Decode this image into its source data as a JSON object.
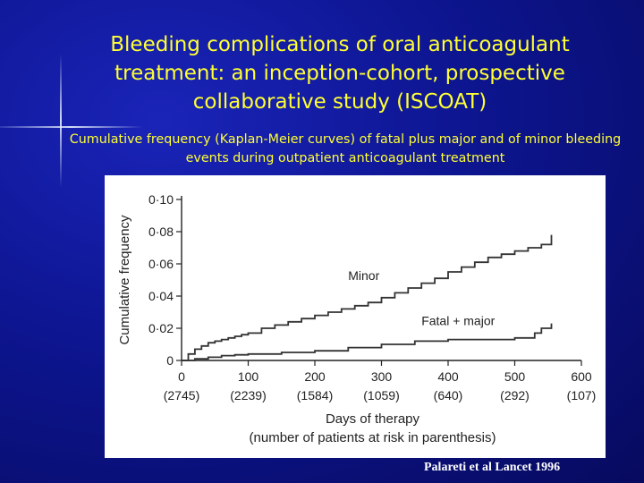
{
  "slide": {
    "title": "Bleeding complications of oral anticoagulant treatment: an inception-cohort, prospective collaborative study (ISCOAT)",
    "subtitle": "Cumulative frequency (Kaplan-Meier curves) of fatal plus major and of minor bleeding events during outpatient anticoagulant treatment",
    "citation": "Palareti et al Lancet  1996",
    "title_color": "#ffff33",
    "background_color": "#0d1590"
  },
  "chart_data": {
    "type": "line",
    "title": "",
    "xlabel": "Days of therapy",
    "xlabel_sub": "(number of patients at risk in parenthesis)",
    "ylabel": "Cumulative frequency",
    "xlim": [
      0,
      600
    ],
    "ylim": [
      0,
      0.1
    ],
    "x_ticks": [
      0,
      100,
      200,
      300,
      400,
      500,
      600
    ],
    "y_ticks": [
      0,
      0.02,
      0.04,
      0.06,
      0.08,
      0.1
    ],
    "y_tick_labels": [
      "0",
      "0·02",
      "0·04",
      "0·06",
      "0·08",
      "0·10"
    ],
    "at_risk": [
      "(2745)",
      "(2239)",
      "(1584)",
      "(1059)",
      "(640)",
      "(292)",
      "(107)"
    ],
    "grid": false,
    "series": [
      {
        "name": "Minor",
        "x": [
          0,
          10,
          20,
          30,
          40,
          50,
          60,
          70,
          80,
          90,
          100,
          120,
          140,
          160,
          180,
          200,
          220,
          240,
          260,
          280,
          300,
          320,
          340,
          360,
          380,
          400,
          420,
          440,
          460,
          480,
          500,
          520,
          540,
          555
        ],
        "y": [
          0,
          0.004,
          0.007,
          0.009,
          0.011,
          0.012,
          0.013,
          0.014,
          0.015,
          0.016,
          0.017,
          0.02,
          0.022,
          0.024,
          0.026,
          0.028,
          0.03,
          0.032,
          0.034,
          0.036,
          0.039,
          0.042,
          0.045,
          0.048,
          0.051,
          0.055,
          0.058,
          0.061,
          0.064,
          0.066,
          0.068,
          0.07,
          0.072,
          0.078
        ]
      },
      {
        "name": "Fatal + major",
        "x": [
          0,
          20,
          40,
          60,
          80,
          100,
          150,
          200,
          250,
          300,
          350,
          400,
          450,
          500,
          520,
          530,
          540,
          555
        ],
        "y": [
          0,
          0.001,
          0.002,
          0.003,
          0.0035,
          0.004,
          0.005,
          0.006,
          0.008,
          0.01,
          0.012,
          0.013,
          0.013,
          0.014,
          0.014,
          0.017,
          0.02,
          0.023
        ]
      }
    ],
    "annotations": [
      {
        "text": "Minor",
        "x": 250,
        "y": 0.05
      },
      {
        "text": "Fatal + major",
        "x": 360,
        "y": 0.022
      }
    ]
  }
}
